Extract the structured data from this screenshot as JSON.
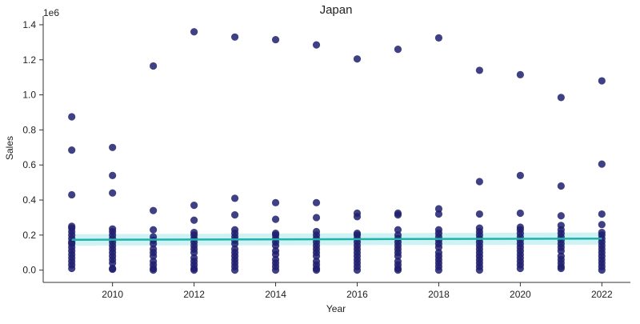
{
  "chart_data": {
    "type": "scatter",
    "title": "Japan",
    "xlabel": "Year",
    "ylabel": "Sales",
    "y_offset_label": "1e6",
    "xlim": [
      2008.3,
      2022.7
    ],
    "ylim": [
      -0.07,
      1.45
    ],
    "x_ticks": [
      2010,
      2012,
      2014,
      2016,
      2018,
      2020,
      2022
    ],
    "x_tick_labels": [
      "2010",
      "2012",
      "2014",
      "2016",
      "2018",
      "2020",
      "2022"
    ],
    "y_ticks": [
      0.0,
      0.2,
      0.4,
      0.6,
      0.8,
      1.0,
      1.2,
      1.4
    ],
    "y_tick_labels": [
      "0.0",
      "0.2",
      "0.4",
      "0.6",
      "0.8",
      "1.0",
      "1.2",
      "1.4"
    ],
    "grid": false,
    "colors": {
      "points": "#1f1f6e",
      "regression_line": "#20b2aa",
      "confidence_band": "#bfeff0"
    },
    "points": [
      {
        "x": 2009,
        "y": [
          0.875,
          0.685,
          0.43,
          0.25,
          0.24,
          0.22,
          0.2,
          0.18,
          0.16,
          0.15,
          0.13,
          0.11,
          0.09,
          0.07,
          0.05,
          0.03,
          0.01
        ]
      },
      {
        "x": 2010,
        "y": [
          0.7,
          0.54,
          0.44,
          0.235,
          0.22,
          0.2,
          0.18,
          0.16,
          0.14,
          0.12,
          0.1,
          0.08,
          0.06,
          0.04,
          0.01,
          0.005
        ]
      },
      {
        "x": 2011,
        "y": [
          1.165,
          0.34,
          0.23,
          0.19,
          0.17,
          0.15,
          0.12,
          0.1,
          0.08,
          0.05,
          0.03,
          0.01,
          0.0
        ]
      },
      {
        "x": 2012,
        "y": [
          1.36,
          0.37,
          0.285,
          0.215,
          0.2,
          0.18,
          0.16,
          0.14,
          0.12,
          0.1,
          0.07,
          0.05,
          0.03,
          0.01,
          0.0
        ]
      },
      {
        "x": 2013,
        "y": [
          1.33,
          0.41,
          0.315,
          0.23,
          0.21,
          0.19,
          0.17,
          0.15,
          0.12,
          0.1,
          0.08,
          0.06,
          0.04,
          0.02,
          0.0
        ]
      },
      {
        "x": 2014,
        "y": [
          1.315,
          0.385,
          0.29,
          0.21,
          0.2,
          0.18,
          0.16,
          0.14,
          0.11,
          0.09,
          0.06,
          0.04,
          0.02,
          0.0
        ]
      },
      {
        "x": 2015,
        "y": [
          1.285,
          0.385,
          0.3,
          0.22,
          0.2,
          0.18,
          0.16,
          0.14,
          0.12,
          0.1,
          0.08,
          0.05,
          0.03,
          0.01,
          0.0
        ]
      },
      {
        "x": 2016,
        "y": [
          1.205,
          0.325,
          0.305,
          0.21,
          0.2,
          0.18,
          0.16,
          0.14,
          0.12,
          0.1,
          0.08,
          0.06,
          0.04,
          0.02,
          0.0
        ]
      },
      {
        "x": 2017,
        "y": [
          1.26,
          0.325,
          0.315,
          0.23,
          0.2,
          0.18,
          0.16,
          0.14,
          0.12,
          0.1,
          0.08,
          0.05,
          0.03,
          0.01,
          0.0
        ]
      },
      {
        "x": 2018,
        "y": [
          1.325,
          0.35,
          0.32,
          0.23,
          0.21,
          0.19,
          0.17,
          0.15,
          0.13,
          0.1,
          0.08,
          0.06,
          0.04,
          0.02,
          0.0
        ]
      },
      {
        "x": 2019,
        "y": [
          1.14,
          0.505,
          0.32,
          0.24,
          0.22,
          0.2,
          0.18,
          0.16,
          0.14,
          0.12,
          0.1,
          0.08,
          0.06,
          0.04,
          0.02,
          0.0
        ]
      },
      {
        "x": 2020,
        "y": [
          1.115,
          0.54,
          0.325,
          0.245,
          0.23,
          0.21,
          0.19,
          0.17,
          0.15,
          0.13,
          0.11,
          0.09,
          0.07,
          0.05,
          0.03,
          0.01
        ]
      },
      {
        "x": 2021,
        "y": [
          0.985,
          0.48,
          0.31,
          0.255,
          0.23,
          0.21,
          0.19,
          0.17,
          0.15,
          0.13,
          0.11,
          0.08,
          0.06,
          0.04,
          0.02,
          0.01
        ]
      },
      {
        "x": 2022,
        "y": [
          1.08,
          0.605,
          0.32,
          0.26,
          0.215,
          0.2,
          0.18,
          0.16,
          0.14,
          0.12,
          0.1,
          0.08,
          0.06,
          0.04,
          0.02,
          0.0
        ]
      }
    ],
    "regression": {
      "x": [
        2009,
        2022
      ],
      "y": [
        0.173,
        0.18
      ],
      "ci_lower": [
        0.14,
        0.145
      ],
      "ci_upper": [
        0.205,
        0.215
      ]
    }
  }
}
